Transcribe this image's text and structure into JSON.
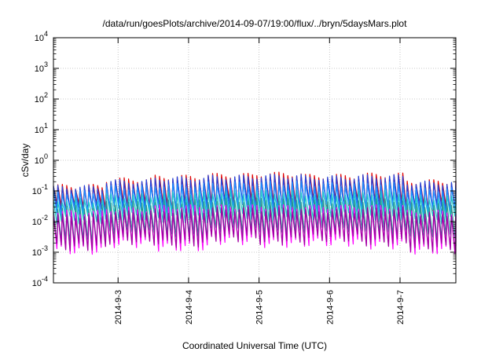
{
  "chart_data": {
    "type": "line",
    "title": "/data/run/goesPlots/archive/2014-09-07/19:00/flux/../bryn/5daysMars.plot",
    "xlabel": "Coordinated Universal Time (UTC)",
    "ylabel": "cSv/day",
    "y_scale": "log",
    "ylim": [
      0.0001,
      10000
    ],
    "xlim": [
      "2014-09-02T02:00",
      "2014-09-07T19:00"
    ],
    "x_ticks": [
      "2014-9-3",
      "2014-9-4",
      "2014-9-5",
      "2014-9-6",
      "2014-9-7"
    ],
    "x_tick_values": [
      "2014-09-03T00:00",
      "2014-09-04T00:00",
      "2014-09-05T00:00",
      "2014-09-06T00:00",
      "2014-09-07T00:00"
    ],
    "y_ticks": [
      {
        "base": "10",
        "exp": "-4"
      },
      {
        "base": "10",
        "exp": "-3"
      },
      {
        "base": "10",
        "exp": "-2"
      },
      {
        "base": "10",
        "exp": "-1"
      },
      {
        "base": "10",
        "exp": "0"
      },
      {
        "base": "10",
        "exp": "1"
      },
      {
        "base": "10",
        "exp": "2"
      },
      {
        "base": "10",
        "exp": "3"
      },
      {
        "base": "10",
        "exp": "4"
      }
    ],
    "grid": true,
    "pattern": "sawtooth, about 16 cycles per day",
    "series": [
      {
        "color": "#e00000",
        "peak_values": [
          0.14,
          0.23,
          0.28,
          0.32,
          0.35,
          0.3,
          0.33,
          0.2
        ],
        "trough_values": [
          0.03,
          0.035,
          0.03,
          0.04,
          0.035,
          0.04,
          0.035,
          0.03
        ]
      },
      {
        "color": "#2244dd",
        "peak_values": [
          0.13,
          0.2,
          0.25,
          0.28,
          0.3,
          0.27,
          0.29,
          0.18
        ],
        "trough_values": [
          0.025,
          0.03,
          0.026,
          0.035,
          0.03,
          0.035,
          0.03,
          0.026
        ]
      },
      {
        "color": "#1e90ff",
        "peak_values": [
          0.09,
          0.13,
          0.15,
          0.17,
          0.18,
          0.16,
          0.17,
          0.11
        ],
        "trough_values": [
          0.02,
          0.025,
          0.022,
          0.028,
          0.025,
          0.028,
          0.024,
          0.02
        ]
      },
      {
        "color": "#20c8c8",
        "peak_values": [
          0.05,
          0.07,
          0.08,
          0.09,
          0.09,
          0.08,
          0.09,
          0.06
        ],
        "trough_values": [
          0.012,
          0.015,
          0.013,
          0.016,
          0.014,
          0.016,
          0.014,
          0.012
        ]
      },
      {
        "color": "#2a8f8f",
        "peak_values": [
          0.03,
          0.04,
          0.045,
          0.05,
          0.05,
          0.045,
          0.05,
          0.035
        ],
        "trough_values": [
          0.002,
          0.004,
          0.003,
          0.005,
          0.004,
          0.005,
          0.004,
          0.003
        ]
      },
      {
        "color": "#ff00ff",
        "peak_values": [
          0.02,
          0.025,
          0.03,
          0.03,
          0.03,
          0.03,
          0.03,
          0.02
        ],
        "trough_values": [
          0.0012,
          0.002,
          0.0015,
          0.0025,
          0.002,
          0.0022,
          0.0018,
          0.0012
        ]
      },
      {
        "color": "#a000a0",
        "peak_values": [
          0.015,
          0.02,
          0.022,
          0.025,
          0.025,
          0.022,
          0.025,
          0.018
        ],
        "trough_values": [
          0.0015,
          0.0025,
          0.002,
          0.003,
          0.0025,
          0.003,
          0.0022,
          0.0015
        ]
      }
    ]
  }
}
